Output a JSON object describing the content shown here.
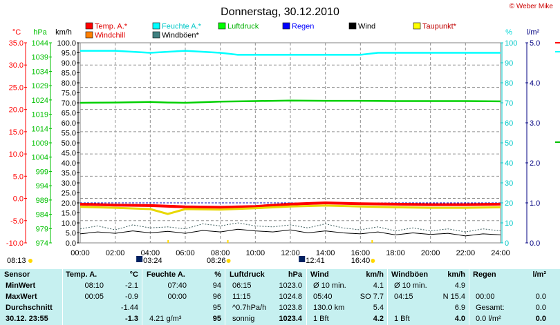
{
  "chart_data": {
    "type": "line",
    "title": "Donnerstag, 30.12.2010",
    "copyright": "© Weber Mike",
    "x_range_hours": [
      0,
      24
    ],
    "x_ticks": [
      "00:00",
      "02:00",
      "04:00",
      "06:00",
      "08:00",
      "10:00",
      "12:00",
      "14:00",
      "16:00",
      "18:00",
      "20:00",
      "22:00",
      "24:00"
    ],
    "axes": {
      "temp": {
        "label": "°C",
        "color": "#ff0000",
        "range": [
          -10,
          35
        ],
        "ticks": [
          "35.0",
          "30.0",
          "25.0",
          "20.0",
          "15.0",
          "10.0",
          "5.0",
          "0.0",
          "-5.0",
          "-10.0"
        ]
      },
      "press": {
        "label": "hPa",
        "color": "#00c000",
        "range": [
          974,
          1044
        ],
        "ticks": [
          "1044",
          "1039",
          "1034",
          "1029",
          "1024",
          "1019",
          "1014",
          "1009",
          "1004",
          "999",
          "994",
          "989",
          "984",
          "979",
          "974"
        ]
      },
      "wind": {
        "label": "km/h",
        "color": "#000000",
        "range": [
          0,
          100
        ],
        "ticks": [
          "100.0",
          "95.0",
          "90.0",
          "85.0",
          "80.0",
          "75.0",
          "70.0",
          "65.0",
          "60.0",
          "55.0",
          "50.0",
          "45.0",
          "40.0",
          "35.0",
          "30.0",
          "25.0",
          "20.0",
          "15.0",
          "10.0",
          "5.0",
          "0.0"
        ]
      },
      "hum": {
        "label": "%",
        "color": "#00d8d8",
        "range": [
          0,
          100
        ],
        "ticks": [
          "100",
          "90",
          "80",
          "70",
          "60",
          "50",
          "40",
          "30",
          "20",
          "10",
          "0"
        ]
      },
      "rain": {
        "label": "l/m²",
        "color": "#000080",
        "range": [
          0,
          5
        ],
        "ticks": [
          "5.0",
          "4.0",
          "3.0",
          "2.0",
          "1.0",
          "0.0"
        ]
      }
    },
    "legend": [
      {
        "name": "Temp. A.*",
        "color": "#ff0000"
      },
      {
        "name": "Feuchte A.*",
        "color": "#00ffff"
      },
      {
        "name": "Luftdruck",
        "color": "#00ff00"
      },
      {
        "name": "Regen",
        "color": "#0000ff"
      },
      {
        "name": "Wind",
        "color": "#000000"
      },
      {
        "name": "Taupunkt*",
        "color": "#ffff00"
      },
      {
        "name": "Windchill",
        "color": "#ff8000"
      },
      {
        "name": "Windböen*",
        "color": "#408080"
      }
    ],
    "series": [
      {
        "name": "Feuchte A.*",
        "axis": "hum",
        "color": "#00ffff",
        "x": [
          0,
          2,
          4,
          6,
          8,
          9,
          10,
          12,
          14,
          16,
          17,
          18,
          20,
          22,
          24
        ],
        "y": [
          96,
          96,
          95,
          96,
          95,
          94,
          94,
          94,
          94,
          94,
          95,
          95,
          95,
          95,
          95
        ]
      },
      {
        "name": "Luftdruck",
        "axis": "press",
        "color": "#00d000",
        "x": [
          0,
          2,
          4,
          5,
          6,
          8,
          10,
          12,
          14,
          16,
          18,
          20,
          22,
          24
        ],
        "y": [
          1023.0,
          1023.1,
          1023.3,
          1023.1,
          1023.0,
          1023.4,
          1023.6,
          1023.8,
          1023.7,
          1023.7,
          1023.6,
          1023.6,
          1023.6,
          1023.5
        ]
      },
      {
        "name": "Temp. A.*",
        "axis": "temp",
        "color": "#ff0000",
        "x": [
          0,
          2,
          4,
          6,
          8,
          10,
          12,
          14,
          16,
          18,
          20,
          22,
          24
        ],
        "y": [
          -1.3,
          -1.5,
          -1.6,
          -1.9,
          -2.0,
          -1.8,
          -1.3,
          -1.0,
          -1.2,
          -1.3,
          -1.4,
          -1.4,
          -1.3
        ]
      },
      {
        "name": "Taupunkt*",
        "axis": "temp",
        "color": "#e8d800",
        "x": [
          0,
          2,
          4,
          5,
          6,
          8,
          10,
          12,
          14,
          16,
          18,
          20,
          22,
          24
        ],
        "y": [
          -1.9,
          -2.1,
          -2.4,
          -3.5,
          -2.4,
          -2.5,
          -2.2,
          -1.8,
          -1.6,
          -1.8,
          -2.0,
          -2.1,
          -2.1,
          -2.0
        ]
      },
      {
        "name": "Wind",
        "axis": "wind",
        "color": "#000000",
        "x": [
          0,
          1,
          2,
          3,
          4,
          5,
          6,
          7,
          8,
          9,
          10,
          11,
          12,
          13,
          14,
          15,
          16,
          17,
          18,
          19,
          20,
          21,
          22,
          23,
          24
        ],
        "y": [
          4.5,
          5.5,
          4.8,
          6.0,
          5.0,
          5.8,
          4.8,
          6.2,
          5.5,
          6.8,
          6.0,
          5.5,
          6.5,
          5.0,
          6.0,
          5.0,
          4.5,
          5.5,
          4.0,
          5.0,
          4.2,
          4.8,
          3.5,
          4.5,
          4.0
        ]
      },
      {
        "name": "Windböen*",
        "axis": "wind",
        "color": "#406060",
        "x": [
          0,
          1,
          2,
          3,
          4,
          5,
          6,
          7,
          8,
          9,
          10,
          11,
          12,
          13,
          14,
          15,
          16,
          17,
          18,
          19,
          20,
          21,
          22,
          23,
          24
        ],
        "y": [
          7.0,
          8.5,
          6.5,
          9.0,
          7.5,
          8.0,
          7.0,
          9.5,
          8.5,
          10.0,
          8.5,
          8.0,
          9.0,
          7.5,
          9.5,
          7.5,
          6.5,
          8.0,
          6.0,
          7.5,
          6.0,
          7.0,
          5.5,
          7.0,
          6.0
        ]
      }
    ],
    "markers": [
      {
        "hour": 8.1,
        "label": "08:13",
        "icon": "sunrise",
        "row": 1
      },
      {
        "hour": 3.4,
        "label": "03:24",
        "icon": "moon",
        "row": 2
      },
      {
        "hour": 8.43,
        "label": "08:26",
        "icon": "sunrise",
        "row": 2
      },
      {
        "hour": 12.68,
        "label": "12:41",
        "icon": "moon",
        "row": 2
      },
      {
        "hour": 16.67,
        "label": "16:40",
        "icon": "sunset",
        "row": 2
      }
    ]
  },
  "table": {
    "sensor": {
      "title": "Sensor",
      "rows": [
        "MinWert",
        "MaxWert",
        "Durchschnitt",
        "30.12.  23:55"
      ]
    },
    "temp": {
      "title": "Temp. A.",
      "unit": "°C",
      "time": [
        "08:10",
        "00:05",
        "",
        ""
      ],
      "val": [
        "-2.1",
        "-0.9",
        "-1.44",
        "-1.3"
      ]
    },
    "hum": {
      "title": "Feuchte A.",
      "unit": "%",
      "time": [
        "07:40",
        "00:00",
        "",
        "4.21 g/m³"
      ],
      "val": [
        "94",
        "96",
        "95",
        "95"
      ]
    },
    "press": {
      "title": "Luftdruck",
      "unit": "hPa",
      "time": [
        "06:15",
        "11:15",
        "^0.7hPa/h",
        "sonnig"
      ],
      "val": [
        "1023.0",
        "1024.8",
        "1023.8",
        "1023.4"
      ]
    },
    "wind": {
      "title": "Wind",
      "unit": "km/h",
      "time": [
        "Ø 10 min.",
        "05:40",
        "130.0 km",
        "1 Bft"
      ],
      "val": [
        "4.1",
        "SO 7.7",
        "5.4",
        "4.2"
      ]
    },
    "gust": {
      "title": "Windböen",
      "unit": "km/h",
      "time": [
        "Ø 10 min.",
        "04:15",
        "",
        "1 Bft"
      ],
      "val": [
        "4.9",
        "N 15.4",
        "6.9",
        "4.0"
      ]
    },
    "rain": {
      "title": "Regen",
      "unit": "l/m²",
      "time": [
        "",
        "00:00",
        "Gesamt:",
        "0.0 l/m²"
      ],
      "val": [
        "",
        "0.0",
        "0.0",
        "0.0"
      ]
    }
  }
}
